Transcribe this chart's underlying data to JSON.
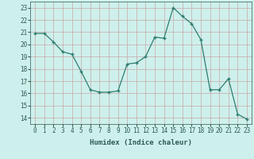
{
  "x": [
    0,
    1,
    2,
    3,
    4,
    5,
    6,
    7,
    8,
    9,
    10,
    11,
    12,
    13,
    14,
    15,
    16,
    17,
    18,
    19,
    20,
    21,
    22,
    23
  ],
  "y": [
    20.9,
    20.9,
    20.2,
    19.4,
    19.2,
    17.8,
    16.3,
    16.1,
    16.1,
    16.2,
    18.4,
    18.5,
    19.0,
    20.6,
    20.5,
    23.0,
    22.3,
    21.7,
    20.4,
    16.3,
    16.3,
    17.2,
    14.3,
    13.9
  ],
  "line_color": "#2d7d6f",
  "marker": "P",
  "marker_size": 3,
  "bg_color": "#cef0ec",
  "grid_color": "#b0c8c4",
  "grid_color_major": "#c8a8a8",
  "xlabel": "Humidex (Indice chaleur)",
  "ylim": [
    13.5,
    23.5
  ],
  "xlim": [
    -0.5,
    23.5
  ],
  "yticks": [
    14,
    15,
    16,
    17,
    18,
    19,
    20,
    21,
    22,
    23
  ],
  "xticks": [
    0,
    1,
    2,
    3,
    4,
    5,
    6,
    7,
    8,
    9,
    10,
    11,
    12,
    13,
    14,
    15,
    16,
    17,
    18,
    19,
    20,
    21,
    22,
    23
  ],
  "label_fontsize": 6.5,
  "tick_fontsize": 5.5
}
